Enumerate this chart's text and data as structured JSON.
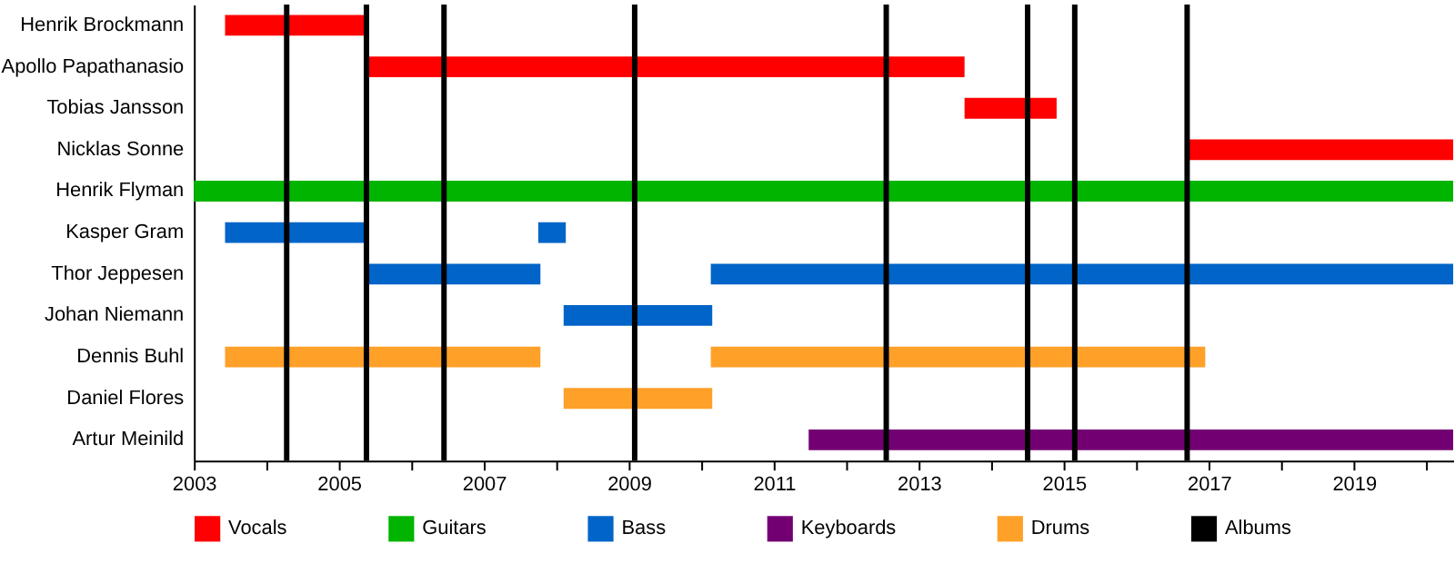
{
  "chart_data": {
    "type": "bar",
    "orientation": "horizontal",
    "categories": [
      "Henrik Brockmann",
      "Apollo Papathanasio",
      "Tobias Jansson",
      "Nicklas Sonne",
      "Henrik Flyman",
      "Kasper Gram",
      "Thor Jeppesen",
      "Johan Niemann",
      "Dennis Buhl",
      "Daniel Flores",
      "Artur Meinild"
    ],
    "series": [
      {
        "name": "Vocals",
        "color": "#ff0000",
        "base": [
          2003.43,
          2005.38,
          2013.63,
          2016.73,
          null,
          null,
          null,
          null,
          null,
          null,
          null
        ],
        "values": [
          1.95,
          8.25,
          1.27,
          3.64,
          null,
          null,
          null,
          null,
          null,
          null,
          null
        ]
      },
      {
        "name": "Guitars",
        "color": "#00b400",
        "base": [
          null,
          null,
          null,
          null,
          2003,
          null,
          null,
          null,
          null,
          null,
          null
        ],
        "values": [
          null,
          null,
          null,
          null,
          17.37,
          null,
          null,
          null,
          null,
          null,
          null
        ]
      },
      {
        "name": "Bass",
        "color": "#0064c8",
        "base": [
          null,
          null,
          null,
          null,
          null,
          2003.43,
          2005.38,
          2008.1,
          null,
          null,
          null
        ],
        "values": [
          null,
          null,
          null,
          null,
          null,
          1.95,
          2.4,
          2.05,
          null,
          null,
          null
        ]
      },
      {
        "color": "#0064c8",
        "base": [
          null,
          null,
          null,
          null,
          null,
          2007.75,
          2010.13,
          null,
          null,
          null,
          null
        ],
        "values": [
          null,
          null,
          null,
          null,
          null,
          0.38,
          10.24,
          null,
          null,
          null,
          null
        ]
      },
      {
        "name": "Keyboards",
        "color": "#730073",
        "base": [
          null,
          null,
          null,
          null,
          null,
          null,
          null,
          null,
          null,
          null,
          2011.48
        ],
        "values": [
          null,
          null,
          null,
          null,
          null,
          null,
          null,
          null,
          null,
          null,
          8.89
        ]
      },
      {
        "name": "Drums",
        "color": "#ffa028",
        "base": [
          null,
          null,
          null,
          null,
          null,
          null,
          null,
          null,
          2003.43,
          2008.1,
          null
        ],
        "values": [
          null,
          null,
          null,
          null,
          null,
          null,
          null,
          null,
          4.35,
          2.05,
          null
        ]
      },
      {
        "color": "#ffa028",
        "base": [
          null,
          null,
          null,
          null,
          null,
          null,
          null,
          null,
          2010.13,
          null,
          null
        ],
        "values": [
          null,
          null,
          null,
          null,
          null,
          null,
          null,
          null,
          6.82,
          null,
          null
        ]
      }
    ],
    "ref_lines": [
      {
        "axis": "x",
        "value": 2004.28,
        "label": "Albums",
        "color": "#000000"
      },
      {
        "axis": "x",
        "value": 2005.38,
        "color": "#000000"
      },
      {
        "axis": "x",
        "value": 2006.45,
        "color": "#000000"
      },
      {
        "axis": "x",
        "value": 2009.08,
        "color": "#000000"
      },
      {
        "axis": "x",
        "value": 2012.55,
        "color": "#000000"
      },
      {
        "axis": "x",
        "value": 2014.5,
        "color": "#000000"
      },
      {
        "axis": "x",
        "value": 2015.15,
        "color": "#000000"
      },
      {
        "axis": "x",
        "value": 2016.7,
        "color": "#000000"
      }
    ],
    "xlim": [
      2003,
      2020.37
    ],
    "xticks": [
      2003,
      {
        "value": 2004,
        "label": null
      },
      2005,
      {
        "value": 2006,
        "label": null
      },
      2007,
      {
        "value": 2008,
        "label": null
      },
      2009,
      {
        "value": 2010,
        "label": null
      },
      2011,
      {
        "value": 2012,
        "label": null
      },
      2013,
      {
        "value": 2014,
        "label": null
      },
      2015,
      {
        "value": 2016,
        "label": null
      },
      2017,
      {
        "value": 2018,
        "label": null
      },
      2019,
      {
        "value": 2020,
        "label": null
      }
    ],
    "grid": false,
    "legend": "bottom"
  }
}
